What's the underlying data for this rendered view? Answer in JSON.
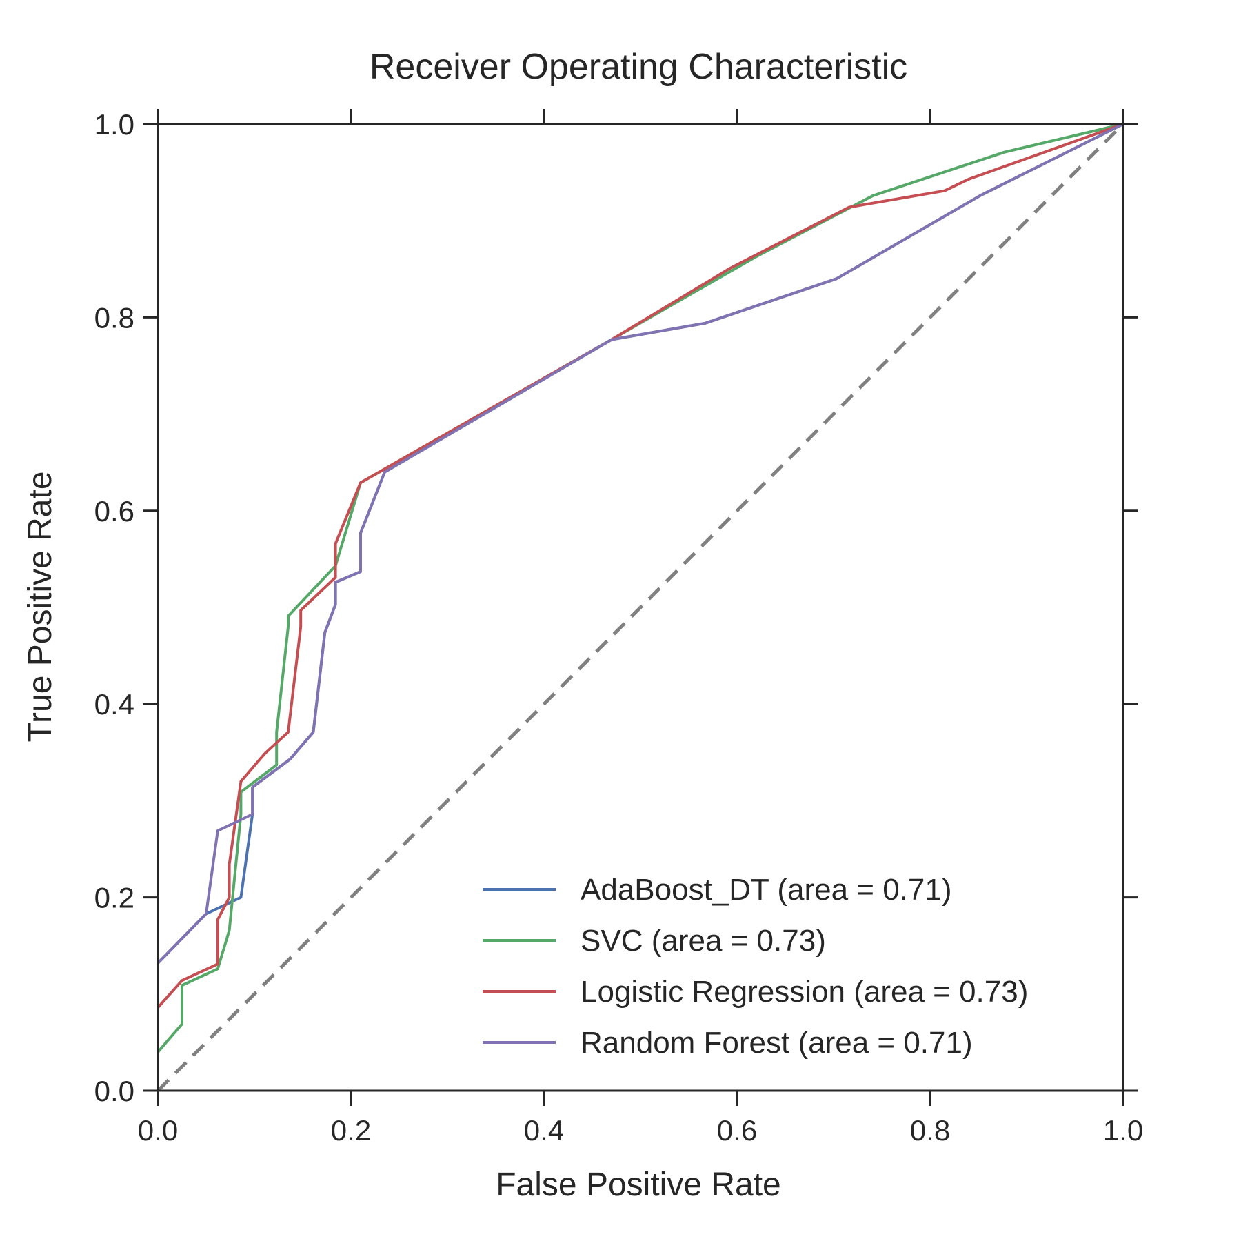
{
  "chart_data": {
    "type": "line",
    "title": "Receiver Operating Characteristic",
    "xlabel": "False Positive Rate",
    "ylabel": "True Positive Rate",
    "xlim": [
      0.0,
      1.0
    ],
    "ylim": [
      0.0,
      1.0
    ],
    "xticks": [
      "0.0",
      "0.2",
      "0.4",
      "0.6",
      "0.8",
      "1.0"
    ],
    "yticks": [
      "0.0",
      "0.2",
      "0.4",
      "0.6",
      "0.8",
      "1.0"
    ],
    "grid": false,
    "legend_position": "bottom-right",
    "series": [
      {
        "name": "AdaBoost_DT (area = 0.71)",
        "color": "#4c72b0",
        "x": [
          0.0,
          0.05,
          0.086,
          0.098,
          0.098,
          0.137,
          0.161,
          0.173,
          0.184,
          0.184,
          0.21,
          0.21,
          0.235,
          0.47,
          0.567,
          0.703,
          0.852,
          1.0
        ],
        "y": [
          0.132,
          0.183,
          0.2,
          0.286,
          0.314,
          0.343,
          0.371,
          0.474,
          0.503,
          0.526,
          0.537,
          0.577,
          0.64,
          0.777,
          0.794,
          0.84,
          0.926,
          1.0
        ]
      },
      {
        "name": "SVC (area = 0.73)",
        "color": "#55a868",
        "x": [
          0.0,
          0.025,
          0.025,
          0.062,
          0.074,
          0.086,
          0.086,
          0.123,
          0.123,
          0.135,
          0.135,
          0.184,
          0.21,
          0.47,
          0.62,
          0.741,
          0.877,
          1.0
        ],
        "y": [
          0.04,
          0.069,
          0.109,
          0.126,
          0.166,
          0.286,
          0.309,
          0.337,
          0.371,
          0.48,
          0.491,
          0.543,
          0.629,
          0.777,
          0.863,
          0.926,
          0.971,
          1.0
        ]
      },
      {
        "name": "Logistic Regression (area = 0.73)",
        "color": "#c44e52",
        "x": [
          0.0,
          0.025,
          0.062,
          0.062,
          0.074,
          0.074,
          0.086,
          0.111,
          0.135,
          0.148,
          0.148,
          0.184,
          0.184,
          0.21,
          0.47,
          0.593,
          0.716,
          0.815,
          0.84,
          1.0
        ],
        "y": [
          0.086,
          0.114,
          0.131,
          0.177,
          0.2,
          0.234,
          0.32,
          0.349,
          0.371,
          0.48,
          0.497,
          0.531,
          0.566,
          0.629,
          0.777,
          0.851,
          0.914,
          0.931,
          0.943,
          1.0
        ]
      },
      {
        "name": "Random Forest (area = 0.71)",
        "color": "#8172b2",
        "x": [
          0.0,
          0.05,
          0.062,
          0.098,
          0.098,
          0.137,
          0.161,
          0.173,
          0.184,
          0.184,
          0.21,
          0.21,
          0.235,
          0.47,
          0.567,
          0.703,
          0.852,
          1.0
        ],
        "y": [
          0.132,
          0.183,
          0.269,
          0.286,
          0.314,
          0.343,
          0.371,
          0.474,
          0.503,
          0.526,
          0.537,
          0.577,
          0.64,
          0.777,
          0.794,
          0.84,
          0.926,
          1.0
        ]
      }
    ],
    "reference_line": {
      "x": [
        0.0,
        1.0
      ],
      "y": [
        0.0,
        1.0
      ],
      "color": "#808080",
      "style": "dashed"
    }
  }
}
